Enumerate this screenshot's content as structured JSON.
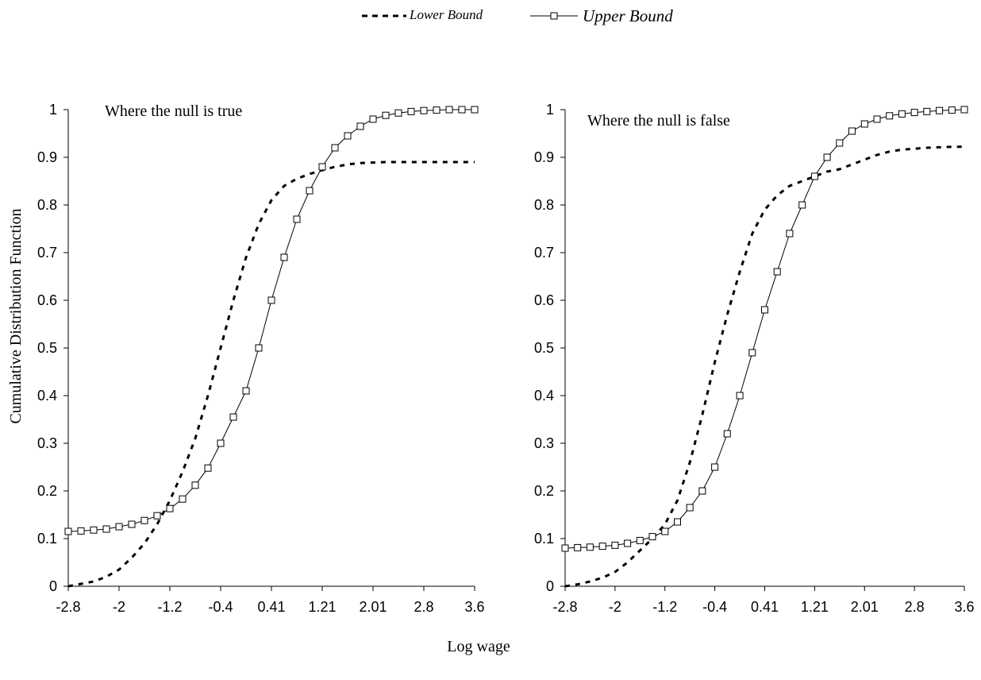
{
  "legend": {
    "lower_label": "Lower Bound",
    "upper_label": "Upper Bound"
  },
  "shared": {
    "ylabel": "Cumulative Distribution Function",
    "xlabel": "Log wage"
  },
  "chart_data": [
    {
      "type": "line",
      "annotation": "Where the null is true",
      "ylim": [
        0,
        1
      ],
      "yticks": [
        0,
        0.1,
        0.2,
        0.3,
        0.4,
        0.5,
        0.6,
        0.7,
        0.8,
        0.9,
        1
      ],
      "xticks": [
        "-2.8",
        "-2",
        "-1.2",
        "-0.4",
        "0.41",
        "1.21",
        "2.01",
        "2.8",
        "3.6"
      ],
      "xlim": [
        -2.8,
        3.6
      ],
      "x": [
        -2.8,
        -2.6,
        -2.4,
        -2.2,
        -2.0,
        -1.8,
        -1.6,
        -1.4,
        -1.2,
        -1.0,
        -0.8,
        -0.6,
        -0.4,
        -0.2,
        0.0,
        0.2,
        0.4,
        0.6,
        0.8,
        1.0,
        1.2,
        1.4,
        1.6,
        1.8,
        2.0,
        2.2,
        2.4,
        2.6,
        2.8,
        3.0,
        3.2,
        3.4,
        3.6
      ],
      "series": [
        {
          "name": "Lower Bound",
          "values": [
            0.0,
            0.005,
            0.01,
            0.02,
            0.035,
            0.06,
            0.09,
            0.13,
            0.18,
            0.24,
            0.31,
            0.4,
            0.5,
            0.6,
            0.69,
            0.76,
            0.81,
            0.84,
            0.855,
            0.865,
            0.873,
            0.88,
            0.885,
            0.888,
            0.889,
            0.89,
            0.89,
            0.89,
            0.89,
            0.89,
            0.89,
            0.89,
            0.89
          ]
        },
        {
          "name": "Upper Bound",
          "values": [
            0.115,
            0.116,
            0.118,
            0.12,
            0.125,
            0.13,
            0.138,
            0.148,
            0.163,
            0.183,
            0.212,
            0.248,
            0.3,
            0.355,
            0.41,
            0.5,
            0.6,
            0.69,
            0.77,
            0.83,
            0.88,
            0.92,
            0.945,
            0.965,
            0.98,
            0.988,
            0.993,
            0.996,
            0.998,
            0.999,
            1.0,
            1.0,
            1.0
          ]
        }
      ]
    },
    {
      "type": "line",
      "annotation": "Where the null is false",
      "ylim": [
        0,
        1
      ],
      "yticks": [
        0,
        0.1,
        0.2,
        0.3,
        0.4,
        0.5,
        0.6,
        0.7,
        0.8,
        0.9,
        1
      ],
      "xticks": [
        "-2.8",
        "-2",
        "-1.2",
        "-0.4",
        "0.41",
        "1.21",
        "2.01",
        "2.8",
        "3.6"
      ],
      "xlim": [
        -2.8,
        3.6
      ],
      "x": [
        -2.8,
        -2.6,
        -2.4,
        -2.2,
        -2.0,
        -1.8,
        -1.6,
        -1.4,
        -1.2,
        -1.0,
        -0.8,
        -0.6,
        -0.4,
        -0.2,
        0.0,
        0.2,
        0.4,
        0.6,
        0.8,
        1.0,
        1.2,
        1.4,
        1.6,
        1.8,
        2.0,
        2.2,
        2.4,
        2.6,
        2.8,
        3.0,
        3.2,
        3.4,
        3.6
      ],
      "series": [
        {
          "name": "Lower Bound",
          "values": [
            0.0,
            0.004,
            0.01,
            0.018,
            0.03,
            0.05,
            0.075,
            0.1,
            0.13,
            0.18,
            0.26,
            0.36,
            0.47,
            0.57,
            0.66,
            0.74,
            0.79,
            0.82,
            0.84,
            0.85,
            0.86,
            0.87,
            0.875,
            0.885,
            0.895,
            0.905,
            0.912,
            0.916,
            0.918,
            0.92,
            0.921,
            0.922,
            0.922
          ]
        },
        {
          "name": "Upper Bound",
          "values": [
            0.08,
            0.081,
            0.082,
            0.084,
            0.086,
            0.09,
            0.096,
            0.104,
            0.115,
            0.135,
            0.165,
            0.2,
            0.25,
            0.32,
            0.4,
            0.49,
            0.58,
            0.66,
            0.74,
            0.8,
            0.86,
            0.9,
            0.93,
            0.955,
            0.97,
            0.98,
            0.987,
            0.991,
            0.994,
            0.996,
            0.998,
            0.999,
            1.0
          ]
        }
      ]
    }
  ]
}
